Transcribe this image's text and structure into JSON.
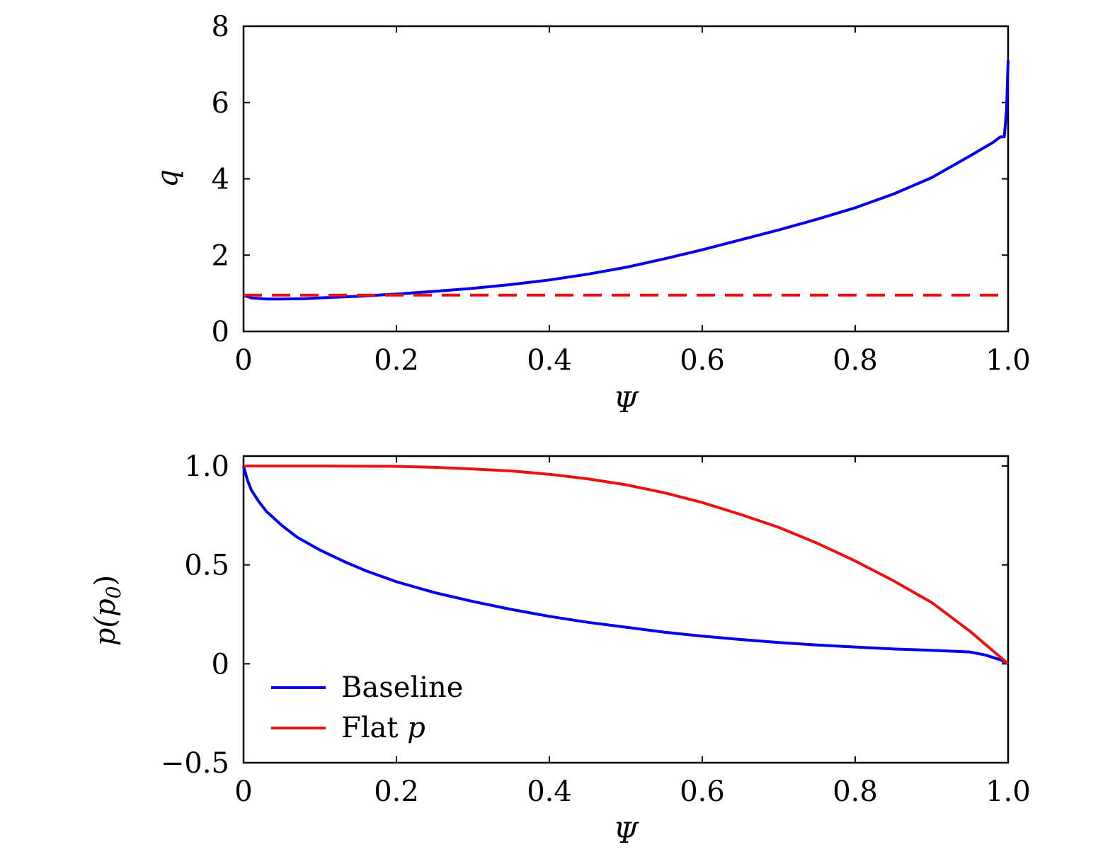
{
  "chart_data": [
    {
      "type": "line",
      "xlabel": "Ψ",
      "ylabel": "q",
      "xlim": [
        0,
        1.0
      ],
      "ylim": [
        0,
        8
      ],
      "xticks": [
        0,
        0.2,
        0.4,
        0.6,
        0.8,
        1.0
      ],
      "xtick_labels": [
        "0",
        "0.2",
        "0.4",
        "0.6",
        "0.8",
        "1.0"
      ],
      "yticks": [
        0,
        2,
        4,
        6,
        8
      ],
      "ytick_labels": [
        "0",
        "2",
        "4",
        "6",
        "8"
      ],
      "grid": false,
      "series": [
        {
          "name": "Baseline",
          "color": "#0000ee",
          "style": "solid",
          "x": [
            0,
            0.01,
            0.03,
            0.05,
            0.08,
            0.1,
            0.15,
            0.2,
            0.25,
            0.3,
            0.35,
            0.4,
            0.45,
            0.5,
            0.55,
            0.6,
            0.65,
            0.7,
            0.75,
            0.8,
            0.85,
            0.9,
            0.95,
            0.98,
            0.99,
            0.995,
            0.998,
            1.0
          ],
          "y": [
            0.95,
            0.88,
            0.85,
            0.85,
            0.86,
            0.88,
            0.92,
            0.98,
            1.05,
            1.13,
            1.23,
            1.35,
            1.5,
            1.68,
            1.9,
            2.14,
            2.4,
            2.66,
            2.94,
            3.24,
            3.6,
            4.03,
            4.6,
            4.95,
            5.1,
            5.1,
            5.8,
            7.1
          ]
        },
        {
          "name": "Flat p",
          "color": "#ee1111",
          "style": "dashed",
          "x": [
            0,
            1.0
          ],
          "y": [
            0.95,
            0.95
          ]
        }
      ]
    },
    {
      "type": "line",
      "xlabel": "Ψ",
      "ylabel": "p(p0)",
      "ylabel_main": "p(p",
      "ylabel_sub": "0",
      "ylabel_close": ")",
      "xlim": [
        0,
        1.0
      ],
      "ylim": [
        -0.5,
        1.05
      ],
      "xticks": [
        0,
        0.2,
        0.4,
        0.6,
        0.8,
        1.0
      ],
      "xtick_labels": [
        "0",
        "0.2",
        "0.4",
        "0.6",
        "0.8",
        "1.0"
      ],
      "yticks": [
        -0.5,
        0,
        0.5,
        1.0
      ],
      "ytick_labels": [
        "−0.5",
        "0",
        "0.5",
        "1.0"
      ],
      "grid": false,
      "legend": {
        "placement": "lower-left",
        "entries": [
          {
            "text": "Baseline",
            "italic_suffix": ""
          },
          {
            "text": "Flat ",
            "italic_suffix": "p"
          }
        ]
      },
      "series": [
        {
          "name": "Baseline",
          "color": "#0000ee",
          "style": "solid",
          "x": [
            0,
            0.005,
            0.01,
            0.02,
            0.03,
            0.05,
            0.07,
            0.1,
            0.13,
            0.16,
            0.2,
            0.25,
            0.3,
            0.35,
            0.4,
            0.45,
            0.5,
            0.55,
            0.6,
            0.65,
            0.7,
            0.75,
            0.8,
            0.85,
            0.9,
            0.95,
            0.97,
            0.99,
            1.0
          ],
          "y": [
            1.0,
            0.93,
            0.88,
            0.82,
            0.77,
            0.7,
            0.64,
            0.575,
            0.52,
            0.47,
            0.415,
            0.36,
            0.315,
            0.275,
            0.24,
            0.21,
            0.185,
            0.16,
            0.14,
            0.123,
            0.108,
            0.095,
            0.085,
            0.075,
            0.068,
            0.06,
            0.045,
            0.02,
            0.0
          ]
        },
        {
          "name": "Flat p",
          "color": "#ee1111",
          "style": "solid",
          "x": [
            0,
            0.1,
            0.2,
            0.25,
            0.3,
            0.35,
            0.4,
            0.45,
            0.5,
            0.55,
            0.6,
            0.65,
            0.7,
            0.75,
            0.8,
            0.85,
            0.9,
            0.95,
            1.0
          ],
          "y": [
            1.0,
            1.0,
            0.998,
            0.993,
            0.985,
            0.975,
            0.958,
            0.935,
            0.905,
            0.865,
            0.815,
            0.755,
            0.69,
            0.61,
            0.52,
            0.42,
            0.31,
            0.165,
            0.0
          ]
        }
      ]
    }
  ]
}
